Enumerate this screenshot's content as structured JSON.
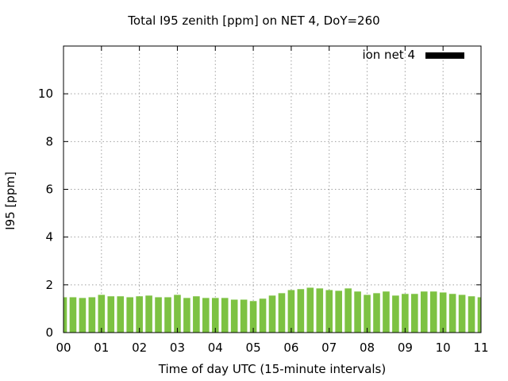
{
  "chart_data": {
    "type": "bar",
    "title": "Total I95 zenith [ppm] on NET 4, DoY=260",
    "xlabel": "Time of day UTC (15-minute intervals)",
    "ylabel": "I95 [ppm]",
    "xlim": [
      0,
      11
    ],
    "ylim": [
      0,
      12
    ],
    "xticks": [
      "00",
      "01",
      "02",
      "03",
      "04",
      "05",
      "06",
      "07",
      "08",
      "09",
      "10",
      "11"
    ],
    "yticks": [
      0,
      2,
      4,
      6,
      8,
      10
    ],
    "grid": true,
    "legend_position": "top-right",
    "bar_color": "#7dc242",
    "series": [
      {
        "name": "ion net 4",
        "values": [
          1.48,
          1.48,
          1.45,
          1.48,
          1.58,
          1.52,
          1.52,
          1.48,
          1.52,
          1.55,
          1.48,
          1.48,
          1.58,
          1.45,
          1.52,
          1.45,
          1.45,
          1.45,
          1.38,
          1.38,
          1.32,
          1.42,
          1.55,
          1.65,
          1.78,
          1.82,
          1.88,
          1.85,
          1.78,
          1.75,
          1.85,
          1.72,
          1.58,
          1.65,
          1.72,
          1.55,
          1.62,
          1.62,
          1.72,
          1.72,
          1.68,
          1.62,
          1.58,
          1.52,
          1.48
        ]
      }
    ]
  }
}
